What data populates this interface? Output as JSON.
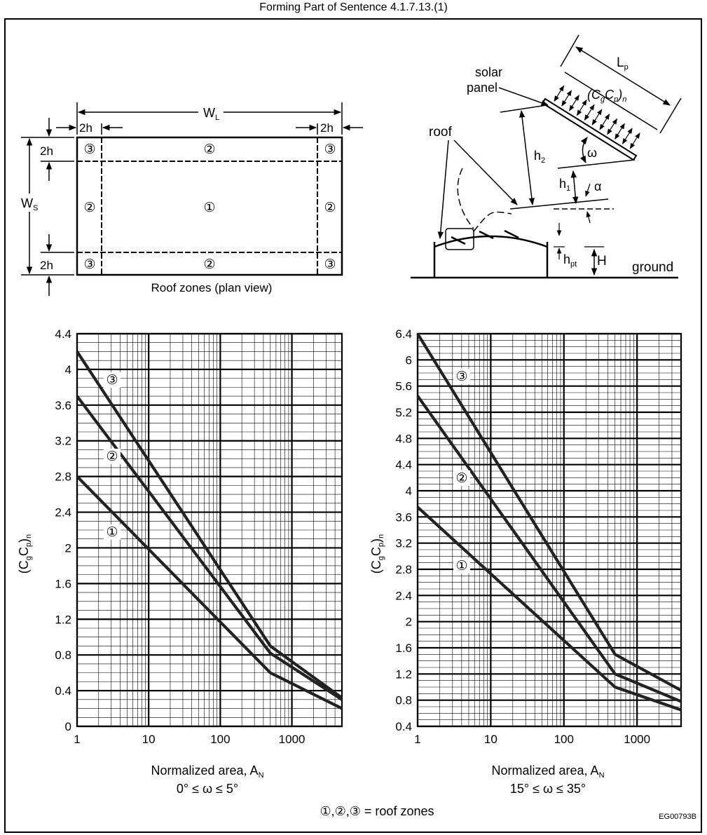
{
  "header": {
    "text": "Forming Part of Sentence 4.1.7.13.(1)"
  },
  "plan_view": {
    "title": "Roof zones (plan view)",
    "label_WL": "W",
    "label_WL_sub": "L",
    "label_WS": "W",
    "label_WS_sub": "S",
    "label_2h": "2h",
    "zone_labels": [
      "①",
      "②",
      "③"
    ]
  },
  "elevation_view": {
    "solar_panel_line1": "solar",
    "solar_panel_line2": "panel",
    "roof": "roof",
    "Lp": "L",
    "Lp_sub": "p",
    "cgcp_main": "(C",
    "cgcp_g": "g",
    "cgcp_mid": "C",
    "cgcp_p": "p",
    "cgcp_close": ")",
    "cgcp_n": "n",
    "h2": "h",
    "h2_sub": "2",
    "h1": "h",
    "h1_sub": "1",
    "omega": "ω",
    "alpha": "α",
    "hpt": "h",
    "hpt_sub": "pt",
    "H": "H",
    "ground": "ground"
  },
  "chart_data": [
    {
      "type": "line",
      "x_scale": "log",
      "xlim": [
        1,
        5000
      ],
      "ylim": [
        0,
        4.4
      ],
      "yticks": [
        "0",
        "0.4",
        "0.8",
        "1.2",
        "1.6",
        "2",
        "2.4",
        "2.8",
        "3.2",
        "3.6",
        "4",
        "4.4"
      ],
      "xticks": [
        "1",
        "10",
        "100",
        "1000"
      ],
      "ylabel_main": "(C",
      "ylabel_g": "g",
      "ylabel_mid": "C",
      "ylabel_p": "p",
      "ylabel_close": ")",
      "ylabel_n": "n",
      "xlabel": "Normalized area, A",
      "xlabel_sub": "N",
      "subtitle": "0° ≤ ω ≤ 5°",
      "grid": true,
      "series": [
        {
          "name": "③",
          "x": [
            1,
            500,
            5000
          ],
          "y": [
            4.2,
            0.9,
            0.32
          ]
        },
        {
          "name": "②",
          "x": [
            1,
            500,
            5000
          ],
          "y": [
            3.7,
            0.82,
            0.3
          ]
        },
        {
          "name": "①",
          "x": [
            1,
            500,
            5000
          ],
          "y": [
            2.8,
            0.6,
            0.2
          ]
        }
      ]
    },
    {
      "type": "line",
      "x_scale": "log",
      "xlim": [
        1,
        4000
      ],
      "ylim": [
        0.4,
        6.4
      ],
      "yticks": [
        "0.4",
        "0.8",
        "1.2",
        "1.6",
        "2",
        "2.4",
        "2.8",
        "3.2",
        "3.6",
        "4",
        "4.4",
        "4.8",
        "5.2",
        "5.6",
        "6",
        "6.4"
      ],
      "xticks": [
        "1",
        "10",
        "100",
        "1000"
      ],
      "ylabel_main": "(C",
      "ylabel_g": "g",
      "ylabel_mid": "C",
      "ylabel_p": "p",
      "ylabel_close": ")",
      "ylabel_n": "n",
      "xlabel": "Normalized area, A",
      "xlabel_sub": "N",
      "subtitle": "15° ≤ ω ≤ 35°",
      "grid": true,
      "series": [
        {
          "name": "③",
          "x": [
            1,
            500,
            4000
          ],
          "y": [
            6.4,
            1.5,
            0.95
          ]
        },
        {
          "name": "②",
          "x": [
            1,
            500,
            4000
          ],
          "y": [
            5.45,
            1.2,
            0.78
          ]
        },
        {
          "name": "①",
          "x": [
            1,
            500,
            4000
          ],
          "y": [
            3.75,
            1.0,
            0.65
          ]
        }
      ]
    }
  ],
  "legend": {
    "text": "①,②,③ = roof zones"
  },
  "figure_id": "EG00793B"
}
